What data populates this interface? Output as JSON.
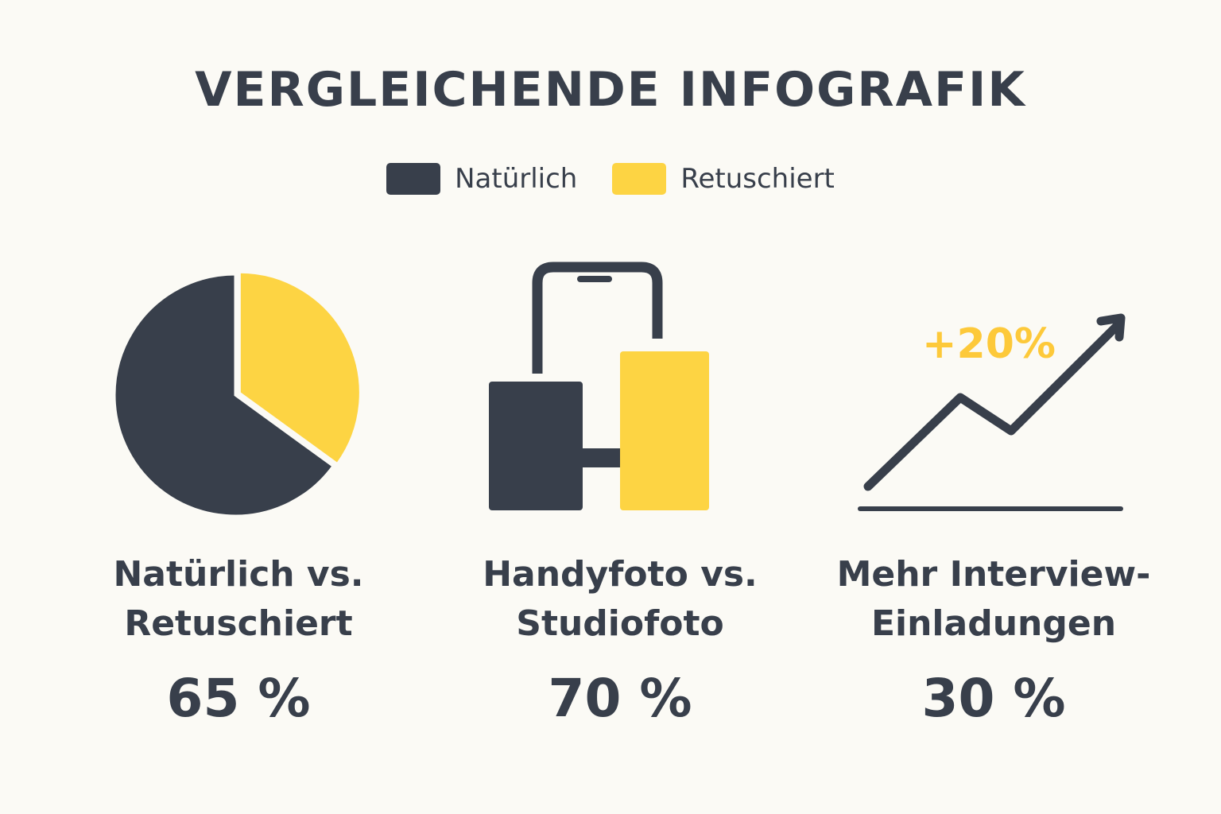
{
  "title": "VERGLEICHENDE INFOGRAFIK",
  "colors": {
    "natural": "#383f4b",
    "retouched": "#fdd443",
    "background": "#fbfaf5",
    "text": "#383f4b"
  },
  "legend": [
    {
      "label": "Natürlich",
      "color": "#383f4b"
    },
    {
      "label": "Retuschiert",
      "color": "#fdd443"
    }
  ],
  "chart_data": [
    {
      "type": "pie",
      "title": "Natürlich vs. Retuschiert",
      "title_lines": [
        "Natürlich vs.",
        "Retuschiert"
      ],
      "value_label": "65 %",
      "slices": [
        {
          "name": "Natürlich",
          "value": 65,
          "color": "#383f4b"
        },
        {
          "name": "Retuschiert",
          "value": 35,
          "color": "#fdd443"
        }
      ]
    },
    {
      "type": "icon",
      "icon": "phone-vs-studio-icon",
      "title": "Handyfoto vs. Studiofoto",
      "title_lines": [
        "Handyfoto vs.",
        "Studiofoto"
      ],
      "value_label": "70 %"
    },
    {
      "type": "line",
      "icon": "trend-up-arrow-icon",
      "title": "Mehr Interview-Einladungen",
      "title_lines": [
        "Mehr Interview-",
        "Einladungen"
      ],
      "annotation": "+20%",
      "value_label": "30 %"
    }
  ]
}
